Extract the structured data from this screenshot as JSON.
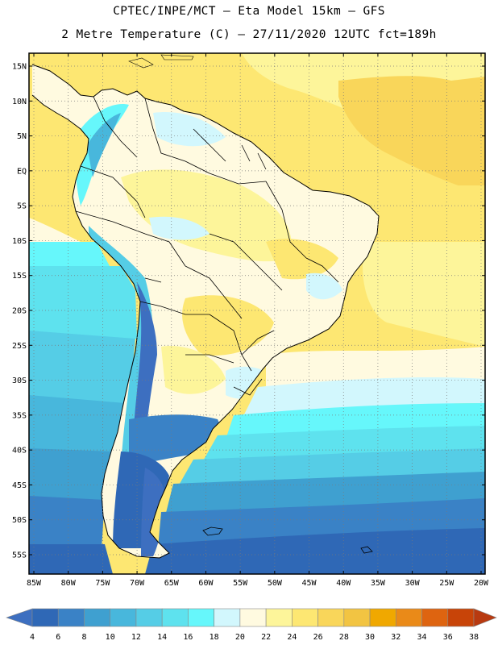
{
  "header": {
    "title_line1": "CPTEC/INPE/MCT –  Eta Model 15km – GFS",
    "title_line2": "2 Metre Temperature (C) – 27/11/2020 12UTC fct=189h"
  },
  "map": {
    "lat_labels": [
      "15N",
      "10N",
      "5N",
      "EQ",
      "5S",
      "10S",
      "15S",
      "20S",
      "25S",
      "30S",
      "35S",
      "40S",
      "45S",
      "50S",
      "55S"
    ],
    "lon_labels": [
      "85W",
      "80W",
      "75W",
      "70W",
      "65W",
      "60W",
      "55W",
      "50W",
      "45W",
      "40W",
      "35W",
      "30W",
      "25W",
      "20W"
    ],
    "gridlines": "dotted"
  },
  "legend": {
    "labels": [
      "4",
      "6",
      "8",
      "10",
      "12",
      "14",
      "16",
      "18",
      "20",
      "22",
      "24",
      "26",
      "28",
      "30",
      "32",
      "34",
      "36",
      "38"
    ],
    "colors": [
      "#3d6fc0",
      "#2f68b6",
      "#3a82c6",
      "#3fa0d0",
      "#48b7dc",
      "#55cde6",
      "#5ee2ee",
      "#66f7fb",
      "#d2f7fd",
      "#fffae0",
      "#fdf59a",
      "#fde772",
      "#f9d65a",
      "#f2c442",
      "#f0a800",
      "#ea8a18",
      "#de6410",
      "#c84408",
      "#b83a10"
    ]
  }
}
